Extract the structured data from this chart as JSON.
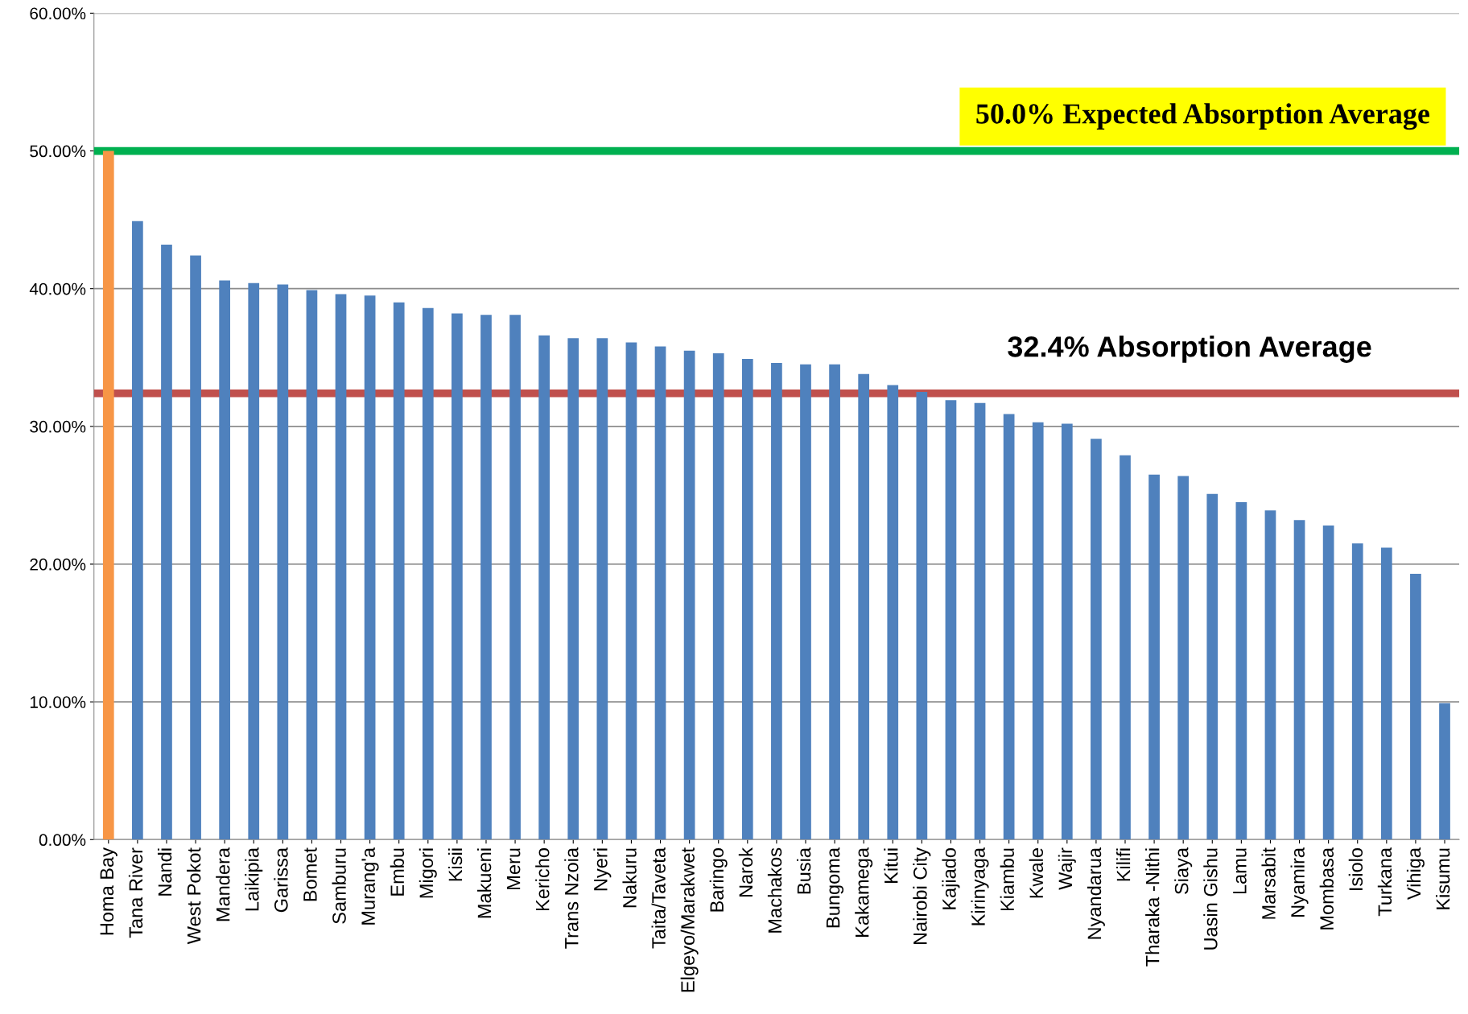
{
  "chart_data": {
    "type": "bar",
    "categories": [
      "Homa Bay",
      "Tana River",
      "Nandi",
      "West Pokot",
      "Mandera",
      "Laikipia",
      "Garissa",
      "Bomet",
      "Samburu",
      "Murang'a",
      "Embu",
      "Migori",
      "Kisii",
      "Makueni",
      "Meru",
      "Kericho",
      "Trans Nzoia",
      "Nyeri",
      "Nakuru",
      "Taita/Taveta",
      "Elgeyo/Marakwet",
      "Baringo",
      "Narok",
      "Machakos",
      "Busia",
      "Bungoma",
      "Kakamega",
      "Kitui",
      "Nairobi City",
      "Kajiado",
      "Kirinyaga",
      "Kiambu",
      "Kwale",
      "Wajir",
      "Nyandarua",
      "Kilifi",
      "Tharaka -Nithi",
      "Siaya",
      "Uasin Gishu",
      "Lamu",
      "Marsabit",
      "Nyamira",
      "Mombasa",
      "Isiolo",
      "Turkana",
      "Vihiga",
      "Kisumu"
    ],
    "values": [
      50.0,
      44.9,
      43.2,
      42.4,
      40.6,
      40.4,
      40.3,
      39.9,
      39.6,
      39.5,
      39.0,
      38.6,
      38.2,
      38.1,
      38.1,
      36.6,
      36.4,
      36.4,
      36.1,
      35.8,
      35.5,
      35.3,
      34.9,
      34.6,
      34.5,
      34.5,
      33.8,
      33.0,
      32.5,
      31.9,
      31.7,
      30.9,
      30.3,
      30.2,
      29.1,
      27.9,
      26.5,
      26.4,
      25.1,
      24.5,
      23.9,
      23.2,
      22.8,
      21.5,
      21.2,
      19.3,
      9.9
    ],
    "colors": [
      "#f79646",
      "#4f81bd",
      "#4f81bd",
      "#4f81bd",
      "#4f81bd",
      "#4f81bd",
      "#4f81bd",
      "#4f81bd",
      "#4f81bd",
      "#4f81bd",
      "#4f81bd",
      "#4f81bd",
      "#4f81bd",
      "#4f81bd",
      "#4f81bd",
      "#4f81bd",
      "#4f81bd",
      "#4f81bd",
      "#4f81bd",
      "#4f81bd",
      "#4f81bd",
      "#4f81bd",
      "#4f81bd",
      "#4f81bd",
      "#4f81bd",
      "#4f81bd",
      "#4f81bd",
      "#4f81bd",
      "#4f81bd",
      "#4f81bd",
      "#4f81bd",
      "#4f81bd",
      "#4f81bd",
      "#4f81bd",
      "#4f81bd",
      "#4f81bd",
      "#4f81bd",
      "#4f81bd",
      "#4f81bd",
      "#4f81bd",
      "#4f81bd",
      "#4f81bd",
      "#4f81bd",
      "#4f81bd",
      "#4f81bd",
      "#4f81bd",
      "#4f81bd"
    ],
    "ylim": [
      0,
      60
    ],
    "yticks": [
      {
        "value": 0,
        "label": "0.00%"
      },
      {
        "value": 10,
        "label": "10.00%"
      },
      {
        "value": 20,
        "label": "20.00%"
      },
      {
        "value": 30,
        "label": "30.00%"
      },
      {
        "value": 40,
        "label": "40.00%"
      },
      {
        "value": 50,
        "label": "50.00%"
      },
      {
        "value": 60,
        "label": "60.00%"
      }
    ],
    "grid": "y",
    "legend": false,
    "ref_lines": [
      {
        "axis": "y",
        "value": 50.0,
        "label": "50.0% Expected Absorption Average",
        "color": "#00b050"
      },
      {
        "axis": "y",
        "value": 32.4,
        "label": "32.4% Absorption Average",
        "color": "#c0504d"
      }
    ]
  }
}
